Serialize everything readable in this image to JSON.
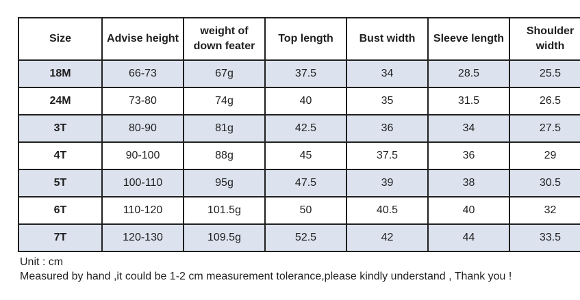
{
  "table": {
    "columns": [
      "Size",
      "Advise height",
      "weight of down feater",
      "Top length",
      "Bust width",
      "Sleeve length",
      "Shoulder width"
    ],
    "rows": [
      [
        "18M",
        "66-73",
        "67g",
        "37.5",
        "34",
        "28.5",
        "25.5"
      ],
      [
        "24M",
        "73-80",
        "74g",
        "40",
        "35",
        "31.5",
        "26.5"
      ],
      [
        "3T",
        "80-90",
        "81g",
        "42.5",
        "36",
        "34",
        "27.5"
      ],
      [
        "4T",
        "90-100",
        "88g",
        "45",
        "37.5",
        "36",
        "29"
      ],
      [
        "5T",
        "100-110",
        "95g",
        "47.5",
        "39",
        "38",
        "30.5"
      ],
      [
        "6T",
        "110-120",
        "101.5g",
        "50",
        "40.5",
        "40",
        "32"
      ],
      [
        "7T",
        "120-130",
        "109.5g",
        "52.5",
        "42",
        "44",
        "33.5"
      ]
    ]
  },
  "chart_data": {
    "type": "table",
    "title": "",
    "columns": [
      "Size",
      "Advise height",
      "weight of down feater",
      "Top length",
      "Bust width",
      "Sleeve length",
      "Shoulder width"
    ],
    "rows": [
      [
        "18M",
        "66-73",
        "67g",
        "37.5",
        "34",
        "28.5",
        "25.5"
      ],
      [
        "24M",
        "73-80",
        "74g",
        "40",
        "35",
        "31.5",
        "26.5"
      ],
      [
        "3T",
        "80-90",
        "81g",
        "42.5",
        "36",
        "34",
        "27.5"
      ],
      [
        "4T",
        "90-100",
        "88g",
        "45",
        "37.5",
        "36",
        "29"
      ],
      [
        "5T",
        "100-110",
        "95g",
        "47.5",
        "39",
        "38",
        "30.5"
      ],
      [
        "6T",
        "110-120",
        "101.5g",
        "50",
        "40.5",
        "40",
        "32"
      ],
      [
        "7T",
        "120-130",
        "109.5g",
        "52.5",
        "42",
        "44",
        "33.5"
      ]
    ]
  },
  "notes": {
    "unit": "Unit : cm",
    "tolerance": "Measured by hand ,it could be 1-2 cm measurement tolerance,please kindly understand , Thank you !"
  },
  "colors": {
    "row_shaded": "#dce3ee",
    "row_plain": "#ffffff",
    "border": "#1f1f1f",
    "text": "#1f1f1f",
    "background": "#ffffff"
  }
}
